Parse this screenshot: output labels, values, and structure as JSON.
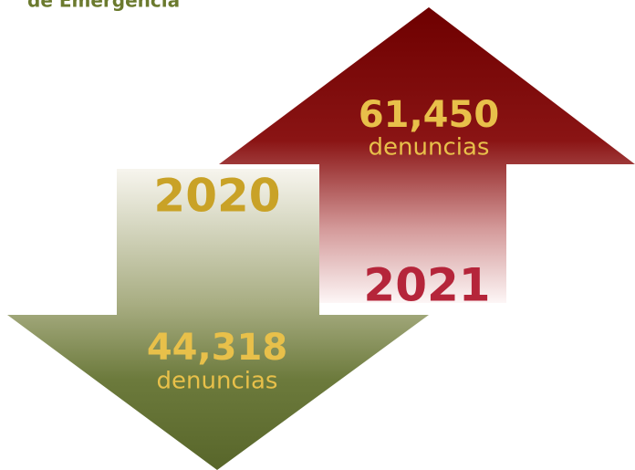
{
  "header": {
    "title": "de Emergencia"
  },
  "items": [
    {
      "year": "2020",
      "count": "44,318",
      "unit": "denuncias"
    },
    {
      "year": "2021",
      "count": "61,450",
      "unit": "denuncias"
    }
  ]
}
